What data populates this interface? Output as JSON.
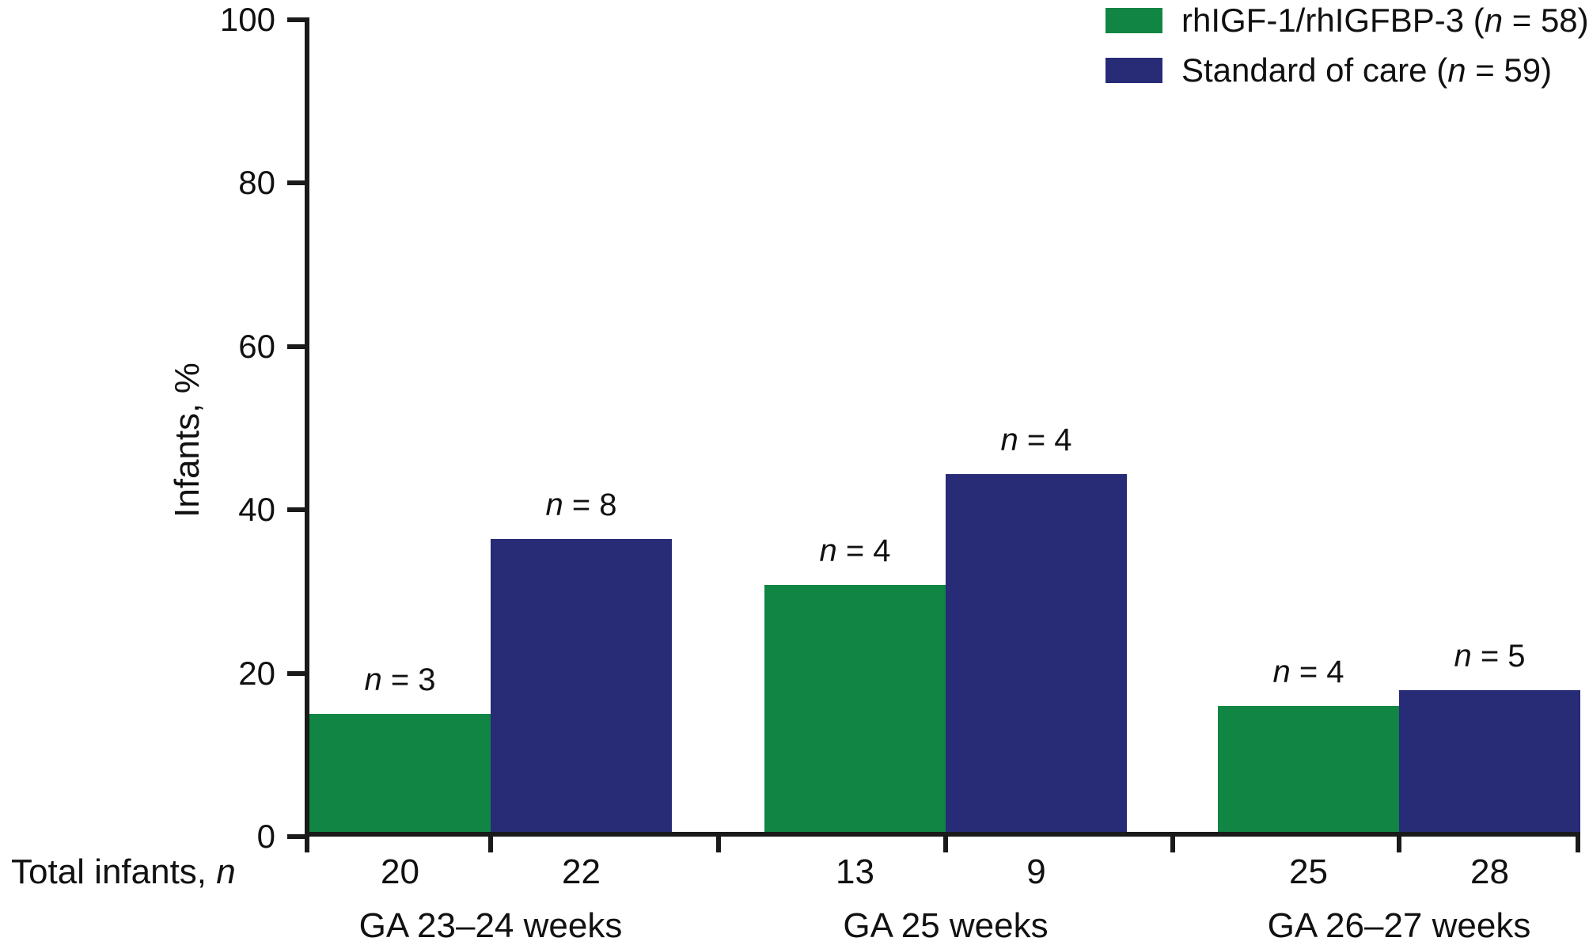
{
  "colors": {
    "treatment_green": "#118543",
    "control_navy": "#282b76",
    "axis_black": "#1a1a1a",
    "background": "#ffffff"
  },
  "y_axis": {
    "title": "Infants, %",
    "tick_values": [
      0,
      20,
      40,
      60,
      80,
      100
    ],
    "min": 0,
    "max": 100
  },
  "x_axis": {
    "group_labels": [
      "GA 23–24 weeks",
      "GA 25 weeks",
      "GA 26–27 weeks"
    ],
    "totals_row_label": "Total infants, n"
  },
  "legend": {
    "items": [
      {
        "label": "rhIGF-1/rhIGFBP-3 (n = 58)",
        "color_key": "treatment_green"
      },
      {
        "label": "Standard of care (n = 59)",
        "color_key": "control_navy"
      }
    ]
  },
  "chart_data": {
    "type": "bar",
    "title": "",
    "xlabel": "",
    "ylabel": "Infants, %",
    "ylim": [
      0,
      100
    ],
    "grid": false,
    "legend_position": "top-right",
    "categories": [
      "GA 23–24 weeks",
      "GA 25 weeks",
      "GA 26–27 weeks"
    ],
    "series": [
      {
        "name": "rhIGF-1/rhIGFBP-3 (n = 58)",
        "color": "#118543",
        "values_percent": [
          15.0,
          30.8,
          16.0
        ],
        "bar_labels": [
          "n = 3",
          "n = 4",
          "n = 4"
        ],
        "total_infants": [
          20,
          13,
          25
        ]
      },
      {
        "name": "Standard of care (n = 59)",
        "color": "#282b76",
        "values_percent": [
          36.4,
          44.4,
          17.9
        ],
        "bar_labels": [
          "n = 8",
          "n = 4",
          "n = 5"
        ],
        "total_infants": [
          22,
          9,
          28
        ]
      }
    ],
    "totals_row": {
      "label": "Total infants, n",
      "values": [
        [
          20,
          22
        ],
        [
          13,
          9
        ],
        [
          25,
          28
        ]
      ]
    }
  }
}
